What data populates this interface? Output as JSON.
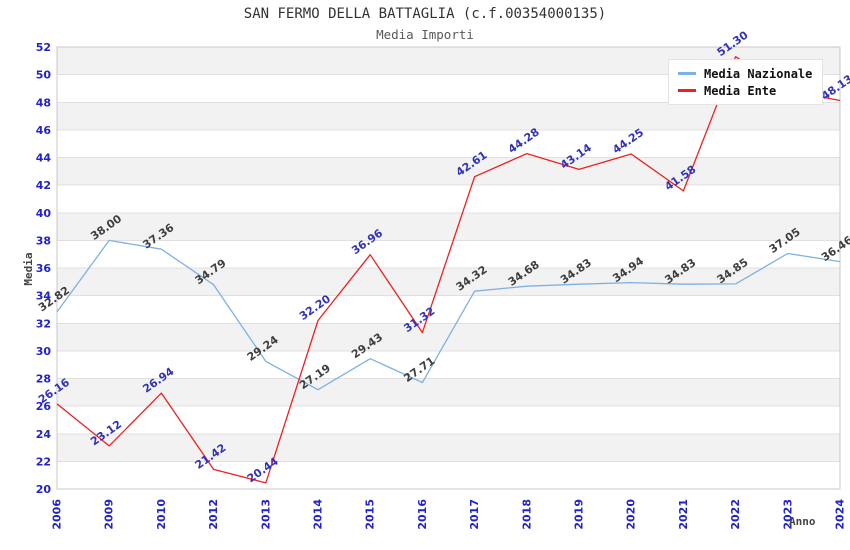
{
  "chart_data": {
    "type": "line",
    "title": "SAN FERMO DELLA BATTAGLIA (c.f.00354000135)",
    "subtitle": "Media Importi",
    "xlabel": "Anno",
    "ylabel": "Media",
    "ylim": [
      20,
      52
    ],
    "ytick_step": 2,
    "grid": "horizontal-bands",
    "legend_position": "top-right",
    "categories": [
      "2006",
      "2009",
      "2010",
      "2012",
      "2013",
      "2014",
      "2015",
      "2016",
      "2017",
      "2018",
      "2019",
      "2020",
      "2021",
      "2022",
      "2023",
      "2024"
    ],
    "series": [
      {
        "name": "Media Nazionale",
        "color": "#7db1e3",
        "label_color": "#3e3e3e",
        "values": [
          32.82,
          38.0,
          37.36,
          34.79,
          29.24,
          27.19,
          29.43,
          27.71,
          34.32,
          34.68,
          34.83,
          34.94,
          34.83,
          34.85,
          37.05,
          36.46
        ]
      },
      {
        "name": "Media Ente",
        "color": "#ee2020",
        "label_color": "#3232b8",
        "values": [
          26.16,
          23.12,
          26.94,
          21.42,
          20.44,
          32.2,
          36.96,
          31.32,
          42.61,
          44.28,
          43.14,
          44.25,
          41.58,
          51.3,
          48.85,
          48.13
        ],
        "label_hidden_for": [
          "2023"
        ],
        "values_estimated_for": [
          "2023"
        ]
      }
    ],
    "style": {
      "axis_tick_color": "#2222cc",
      "band_fill_color": "#f2f2f2",
      "grid_color": "#e0e0e0",
      "plot_border_color": "#c8c8c8",
      "title_color": "#333333",
      "subtitle_color": "#595959",
      "axis_name_color": "#444444"
    }
  }
}
